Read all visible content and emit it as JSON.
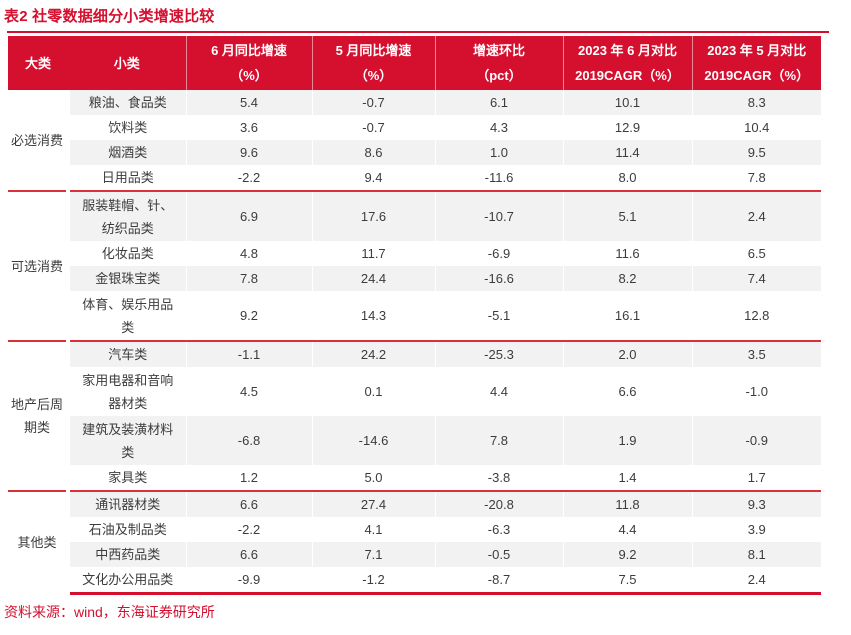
{
  "title": "表2 社零数据细分小类增速比较",
  "source": "资料来源：wind，东海证券研究所",
  "colors": {
    "accent_red": "#d50f2e",
    "separator_red": "#d9303a",
    "stripe_gray": "#f2f2f2",
    "body_text": "#3c3c3c",
    "header_text": "#ffffff"
  },
  "table": {
    "headers": [
      "大类",
      "小类",
      "6 月同比增速\n（%）",
      "5 月同比增速\n（%）",
      "增速环比\n（pct）",
      "2023 年 6 月对比\n2019CAGR（%）",
      "2023 年 5 月对比\n2019CAGR（%）"
    ],
    "groups": [
      {
        "category": "必选消费",
        "rows": [
          {
            "name": "粮油、食品类",
            "values": [
              "5.4",
              "-0.7",
              "6.1",
              "10.1",
              "8.3"
            ]
          },
          {
            "name": "饮料类",
            "values": [
              "3.6",
              "-0.7",
              "4.3",
              "12.9",
              "10.4"
            ]
          },
          {
            "name": "烟酒类",
            "values": [
              "9.6",
              "8.6",
              "1.0",
              "11.4",
              "9.5"
            ]
          },
          {
            "name": "日用品类",
            "values": [
              "-2.2",
              "9.4",
              "-11.6",
              "8.0",
              "7.8"
            ]
          }
        ]
      },
      {
        "category": "可选消费",
        "rows": [
          {
            "name": "服装鞋帽、针、\n纺织品类",
            "values": [
              "6.9",
              "17.6",
              "-10.7",
              "5.1",
              "2.4"
            ]
          },
          {
            "name": "化妆品类",
            "values": [
              "4.8",
              "11.7",
              "-6.9",
              "11.6",
              "6.5"
            ]
          },
          {
            "name": "金银珠宝类",
            "values": [
              "7.8",
              "24.4",
              "-16.6",
              "8.2",
              "7.4"
            ]
          },
          {
            "name": "体育、娱乐用品\n类",
            "values": [
              "9.2",
              "14.3",
              "-5.1",
              "16.1",
              "12.8"
            ]
          }
        ]
      },
      {
        "category": "地产后周\n期类",
        "rows": [
          {
            "name": "汽车类",
            "values": [
              "-1.1",
              "24.2",
              "-25.3",
              "2.0",
              "3.5"
            ]
          },
          {
            "name": "家用电器和音响\n器材类",
            "values": [
              "4.5",
              "0.1",
              "4.4",
              "6.6",
              "-1.0"
            ]
          },
          {
            "name": "建筑及装潢材料\n类",
            "values": [
              "-6.8",
              "-14.6",
              "7.8",
              "1.9",
              "-0.9"
            ]
          },
          {
            "name": "家具类",
            "values": [
              "1.2",
              "5.0",
              "-3.8",
              "1.4",
              "1.7"
            ]
          }
        ]
      },
      {
        "category": "其他类",
        "rows": [
          {
            "name": "通讯器材类",
            "values": [
              "6.6",
              "27.4",
              "-20.8",
              "11.8",
              "9.3"
            ]
          },
          {
            "name": "石油及制品类",
            "values": [
              "-2.2",
              "4.1",
              "-6.3",
              "4.4",
              "3.9"
            ]
          },
          {
            "name": "中西药品类",
            "values": [
              "6.6",
              "7.1",
              "-0.5",
              "9.2",
              "8.1"
            ]
          },
          {
            "name": "文化办公用品类",
            "values": [
              "-9.9",
              "-1.2",
              "-8.7",
              "7.5",
              "2.4"
            ]
          }
        ]
      }
    ]
  },
  "chart_data": {
    "type": "table",
    "title": "表2 社零数据细分小类增速比较",
    "columns": [
      "大类",
      "小类",
      "6月同比增速(%)",
      "5月同比增速(%)",
      "增速环比(pct)",
      "2023年6月对比2019CAGR(%)",
      "2023年5月对比2019CAGR(%)"
    ],
    "rows": [
      [
        "必选消费",
        "粮油、食品类",
        5.4,
        -0.7,
        6.1,
        10.1,
        8.3
      ],
      [
        "必选消费",
        "饮料类",
        3.6,
        -0.7,
        4.3,
        12.9,
        10.4
      ],
      [
        "必选消费",
        "烟酒类",
        9.6,
        8.6,
        1.0,
        11.4,
        9.5
      ],
      [
        "必选消费",
        "日用品类",
        -2.2,
        9.4,
        -11.6,
        8.0,
        7.8
      ],
      [
        "可选消费",
        "服装鞋帽、针、纺织品类",
        6.9,
        17.6,
        -10.7,
        5.1,
        2.4
      ],
      [
        "可选消费",
        "化妆品类",
        4.8,
        11.7,
        -6.9,
        11.6,
        6.5
      ],
      [
        "可选消费",
        "金银珠宝类",
        7.8,
        24.4,
        -16.6,
        8.2,
        7.4
      ],
      [
        "可选消费",
        "体育、娱乐用品类",
        9.2,
        14.3,
        -5.1,
        16.1,
        12.8
      ],
      [
        "地产后周期类",
        "汽车类",
        -1.1,
        24.2,
        -25.3,
        2.0,
        3.5
      ],
      [
        "地产后周期类",
        "家用电器和音响器材类",
        4.5,
        0.1,
        4.4,
        6.6,
        -1.0
      ],
      [
        "地产后周期类",
        "建筑及装潢材料类",
        -6.8,
        -14.6,
        7.8,
        1.9,
        -0.9
      ],
      [
        "地产后周期类",
        "家具类",
        1.2,
        5.0,
        -3.8,
        1.4,
        1.7
      ],
      [
        "其他类",
        "通讯器材类",
        6.6,
        27.4,
        -20.8,
        11.8,
        9.3
      ],
      [
        "其他类",
        "石油及制品类",
        -2.2,
        4.1,
        -6.3,
        4.4,
        3.9
      ],
      [
        "其他类",
        "中西药品类",
        6.6,
        7.1,
        -0.5,
        9.2,
        8.1
      ],
      [
        "其他类",
        "文化办公用品类",
        -9.9,
        -1.2,
        -8.7,
        7.5,
        2.4
      ]
    ]
  }
}
